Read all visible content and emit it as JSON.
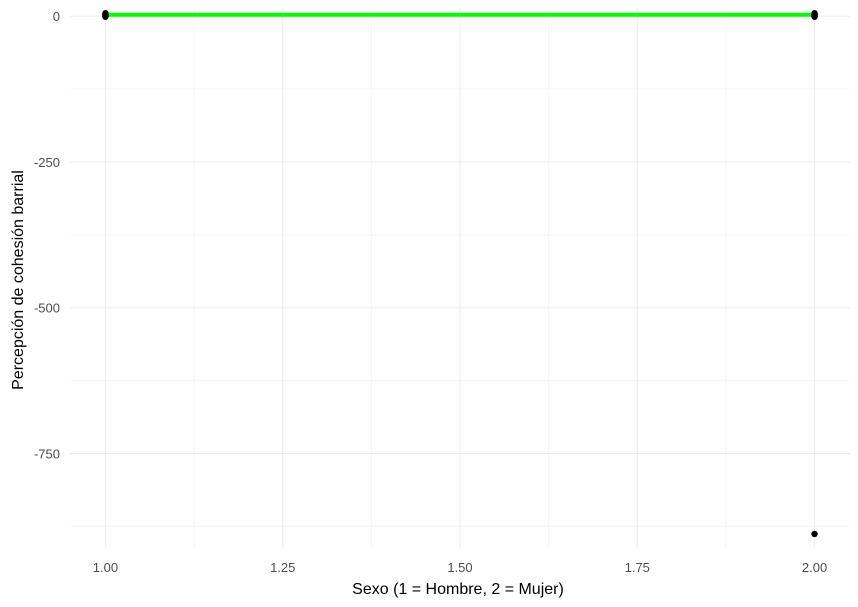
{
  "colors": {
    "background": "#ffffff",
    "grid_major": "#ebebeb",
    "grid_minor": "#f4f4f4",
    "points": "#000000",
    "fit_line": "#00ff00"
  },
  "chart_data": {
    "type": "scatter",
    "title": "",
    "xlabel": "Sexo (1 = Hombre, 2 = Mujer)",
    "ylabel": "Percepción de cohesión barrial",
    "xlim": [
      0.95,
      2.05
    ],
    "ylim": [
      -912,
      14
    ],
    "grid": true,
    "x_ticks": [
      1.0,
      1.25,
      1.5,
      1.75,
      2.0
    ],
    "x_tick_labels": [
      "1.00",
      "1.25",
      "1.50",
      "1.75",
      "2.00"
    ],
    "y_ticks": [
      0,
      -250,
      -500,
      -750
    ],
    "y_tick_labels": [
      "0",
      "-250",
      "-500",
      "-750"
    ],
    "series": [
      {
        "type": "points",
        "points": [
          [
            1,
            0
          ],
          [
            1,
            1
          ],
          [
            1,
            2
          ],
          [
            1,
            3
          ],
          [
            1,
            4
          ],
          [
            1,
            -1
          ],
          [
            1,
            5
          ],
          [
            2,
            0
          ],
          [
            2,
            1
          ],
          [
            2,
            2
          ],
          [
            2,
            3
          ],
          [
            2,
            4
          ],
          [
            2,
            -1
          ],
          [
            2,
            5
          ],
          [
            2,
            -888
          ]
        ]
      },
      {
        "type": "line",
        "points": [
          [
            1,
            2.5
          ],
          [
            2,
            2.5
          ]
        ]
      }
    ]
  }
}
